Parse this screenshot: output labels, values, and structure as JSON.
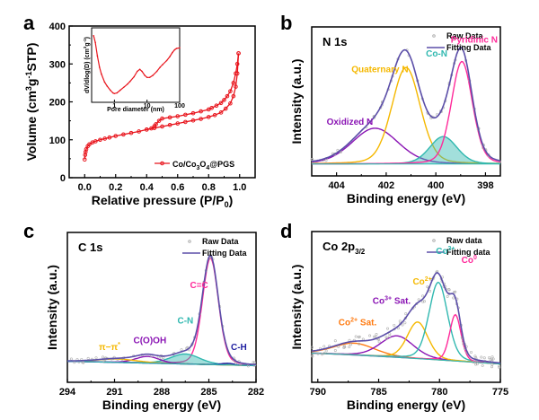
{
  "figure": {
    "panels": [
      "a",
      "b",
      "c",
      "d"
    ]
  },
  "chart_data": [
    {
      "id": "a",
      "type": "line",
      "panel_label": "a",
      "title": "",
      "xlabel": "Relative  pressure (P/P0)",
      "xlabel_main": "Relative  pressure (P/P",
      "xlabel_sub": "0",
      "xlabel_end": ")",
      "ylabel": "Volume (cm3g-1STP)",
      "xlim": [
        -0.1,
        1.1
      ],
      "ylim": [
        0,
        400
      ],
      "xticks": [
        0.0,
        0.2,
        0.4,
        0.6,
        0.8,
        1.0
      ],
      "xtick_labels": [
        "0.0",
        "0.2",
        "0.4",
        "0.6",
        "0.8",
        "1.0"
      ],
      "yticks": [
        0,
        100,
        200,
        300,
        400
      ],
      "ytick_labels": [
        "0",
        "100",
        "200",
        "300",
        "400"
      ],
      "legend": {
        "label": "Co/Co3O4@PGS",
        "placement": "bottom-right"
      },
      "color": "#e8141c",
      "series": [
        {
          "name": "adsorption",
          "x": [
            0.0,
            0.003,
            0.006,
            0.01,
            0.02,
            0.03,
            0.05,
            0.07,
            0.1,
            0.13,
            0.16,
            0.2,
            0.25,
            0.3,
            0.35,
            0.4,
            0.45,
            0.5,
            0.55,
            0.6,
            0.65,
            0.7,
            0.75,
            0.8,
            0.84,
            0.88,
            0.91,
            0.94,
            0.96,
            0.975,
            0.985,
            0.993
          ],
          "y": [
            48,
            60,
            68,
            75,
            83,
            88,
            93,
            96,
            100,
            103,
            106,
            110,
            114,
            118,
            122,
            127,
            131,
            135,
            139,
            143,
            147,
            151,
            155,
            160,
            165,
            172,
            182,
            196,
            215,
            240,
            275,
            328
          ]
        },
        {
          "name": "desorption",
          "x": [
            0.993,
            0.985,
            0.975,
            0.96,
            0.94,
            0.92,
            0.9,
            0.88,
            0.85,
            0.82,
            0.8,
            0.75,
            0.7,
            0.65,
            0.6,
            0.55,
            0.5,
            0.48,
            0.46,
            0.45,
            0.43,
            0.4
          ],
          "y": [
            328,
            300,
            275,
            250,
            228,
            215,
            205,
            197,
            190,
            184,
            180,
            175,
            170,
            166,
            162,
            159,
            156,
            150,
            141,
            136,
            130,
            127
          ]
        }
      ],
      "inset": {
        "type": "line",
        "xlabel": "Pore diameter (nm)",
        "ylabel": "dV/dlog(D) (cm3g-1)",
        "xscale": "log",
        "xlim": [
          0.2,
          100
        ],
        "xticks": [
          1,
          10,
          100
        ],
        "xtick_labels": [
          "1",
          "10",
          "100"
        ],
        "ylim": [
          0,
          1
        ],
        "x": [
          0.23,
          0.26,
          0.3,
          0.35,
          0.4,
          0.5,
          0.6,
          0.75,
          0.9,
          1.0,
          1.2,
          1.5,
          2.0,
          2.5,
          3.0,
          4.0,
          5.0,
          6.0,
          7.0,
          8.5,
          10,
          12,
          15,
          20,
          25,
          30,
          40,
          50,
          60,
          70,
          80,
          100
        ],
        "y": [
          0.95,
          0.85,
          0.65,
          0.48,
          0.38,
          0.26,
          0.2,
          0.14,
          0.1,
          0.09,
          0.1,
          0.14,
          0.19,
          0.23,
          0.27,
          0.34,
          0.42,
          0.45,
          0.42,
          0.36,
          0.33,
          0.33,
          0.36,
          0.42,
          0.48,
          0.52,
          0.58,
          0.64,
          0.7,
          0.74,
          0.76,
          0.77
        ]
      }
    },
    {
      "id": "b",
      "type": "line",
      "panel_label": "b",
      "title": "N 1s",
      "xlabel": "Binding energy (eV)",
      "ylabel": "Intensity (a.u.)",
      "xlim": [
        405.0,
        397.4
      ],
      "ylim": [
        -0.1,
        1.15
      ],
      "xticks": [
        404,
        402,
        400,
        398
      ],
      "xtick_labels": [
        "404",
        "402",
        "400",
        "398"
      ],
      "legend": {
        "entries": [
          "Raw Data",
          "Fitting Data"
        ],
        "placement": "top-right"
      },
      "colors": {
        "fit": "#5b4ea8",
        "raw": "#b0b0b0"
      },
      "peaks": [
        {
          "name": "Oxidized N",
          "center": 402.45,
          "height": 0.3,
          "fwhm": 2.2,
          "color": "#8a14b4",
          "fill": false
        },
        {
          "name": "Quaternary N",
          "center": 401.2,
          "height": 0.81,
          "fwhm": 1.35,
          "color": "#f5b800",
          "fill": false
        },
        {
          "name": "Co-N",
          "center": 399.7,
          "height": 0.23,
          "fwhm": 1.3,
          "color": "#30b8b0",
          "fill": true
        },
        {
          "name": "Pyridinic N",
          "center": 398.95,
          "height": 0.86,
          "fwhm": 1.0,
          "color": "#ff2a9a",
          "fill": false
        }
      ],
      "annotations": [
        {
          "text": "Oxidized N",
          "x": 404.4,
          "y": 0.33,
          "color": "#8a14b4"
        },
        {
          "text": "Quaternary N",
          "x": 403.4,
          "y": 0.77,
          "color": "#f5b800"
        },
        {
          "text": "Co-N",
          "x": 400.4,
          "y": 0.9,
          "color": "#30b8b0"
        },
        {
          "text": "Pyridinic N",
          "x": 399.4,
          "y": 1.02,
          "color": "#ff2a9a"
        }
      ]
    },
    {
      "id": "c",
      "type": "line",
      "panel_label": "c",
      "title": "C 1s",
      "xlabel": "Binding energy (eV)",
      "ylabel": "Intensity (a.u.)",
      "xlim": [
        294,
        282
      ],
      "ylim": [
        -0.15,
        1.2
      ],
      "xticks": [
        294,
        291,
        288,
        285,
        282
      ],
      "xtick_labels": [
        "294",
        "291",
        "288",
        "285",
        "282"
      ],
      "legend": {
        "entries": [
          "Raw Data",
          "Fitting Data"
        ],
        "placement": "top-right"
      },
      "colors": {
        "fit": "#5b4ea8",
        "raw": "#b0b0b0"
      },
      "peaks": [
        {
          "name": "C=C",
          "center": 284.9,
          "height": 0.96,
          "fwhm": 1.2,
          "color": "#ff2a9a",
          "fill": false
        },
        {
          "name": "C-N",
          "center": 286.5,
          "height": 0.09,
          "fwhm": 2.2,
          "color": "#30b8b0",
          "fill": true
        },
        {
          "name": "C(O)OH",
          "center": 288.9,
          "height": 0.06,
          "fwhm": 1.8,
          "color": "#8a14b4",
          "fill": false
        },
        {
          "name": "π−π*",
          "center": 290.8,
          "height": 0.03,
          "fwhm": 3.0,
          "color": "#f5b800",
          "fill": false
        },
        {
          "name": "C-H",
          "center": 283.8,
          "height": 0.015,
          "fwhm": 1.0,
          "color": "#1e1ea0",
          "fill": false
        }
      ],
      "annotations": [
        {
          "text": "C=C",
          "x": 286.2,
          "y": 0.7,
          "color": "#ff2a9a"
        },
        {
          "text": "C-N",
          "x": 287.0,
          "y": 0.38,
          "color": "#30b8b0"
        },
        {
          "text": "C(O)OH",
          "x": 289.8,
          "y": 0.2,
          "color": "#8a14b4"
        },
        {
          "text": "π−π*",
          "x": 292.0,
          "y": 0.14,
          "color": "#f5b800"
        },
        {
          "text": "C-H",
          "x": 283.6,
          "y": 0.14,
          "color": "#1e1ea0"
        }
      ]
    },
    {
      "id": "d",
      "type": "line",
      "panel_label": "d",
      "title": "Co 2p3/2",
      "title_main": "Co 2p",
      "title_sub": "3/2",
      "xlabel": "Binding energy (eV)",
      "ylabel": "Intensity (a.u.)",
      "xlim": [
        790.5,
        775
      ],
      "ylim": [
        -0.25,
        1.15
      ],
      "xticks": [
        790,
        785,
        780,
        775
      ],
      "xtick_labels": [
        "790",
        "785",
        "780",
        "775"
      ],
      "legend": {
        "entries": [
          "Raw data",
          "Fitting data"
        ],
        "placement": "top-right"
      },
      "colors": {
        "fit": "#5b4ea8",
        "raw": "#b0b0b0"
      },
      "peaks": [
        {
          "name": "Co2+ Sat.",
          "center": 787.0,
          "height": 0.11,
          "fwhm": 4.0,
          "color": "#ff7a10",
          "fill": false
        },
        {
          "name": "Co3+ Sat.",
          "center": 783.5,
          "height": 0.2,
          "fwhm": 3.2,
          "color": "#8a14b4",
          "fill": false
        },
        {
          "name": "Co2+",
          "center": 781.8,
          "height": 0.34,
          "fwhm": 2.0,
          "color": "#f5b800",
          "fill": false
        },
        {
          "name": "Co3+",
          "center": 780.1,
          "height": 0.72,
          "fwhm": 1.8,
          "color": "#30b8b0",
          "fill": false
        },
        {
          "name": "Co0",
          "center": 778.7,
          "height": 0.43,
          "fwhm": 1.1,
          "color": "#ff2a9a",
          "fill": false
        }
      ],
      "annotations": [
        {
          "text": "Co",
          "sup": "2+",
          "suffix": " Sat.",
          "x": 788.3,
          "y": 0.28,
          "color": "#ff7a10"
        },
        {
          "text": "Co",
          "sup": "3+",
          "suffix": " Sat.",
          "x": 785.5,
          "y": 0.48,
          "color": "#8a14b4"
        },
        {
          "text": "Co",
          "sup": "2+",
          "suffix": "",
          "x": 782.2,
          "y": 0.66,
          "color": "#f5b800"
        },
        {
          "text": "Co",
          "sup": "3+",
          "suffix": "",
          "x": 780.3,
          "y": 0.94,
          "color": "#30b8b0"
        },
        {
          "text": "Co",
          "sup": "0",
          "suffix": "",
          "x": 778.2,
          "y": 0.86,
          "color": "#ff2a9a"
        }
      ]
    }
  ]
}
